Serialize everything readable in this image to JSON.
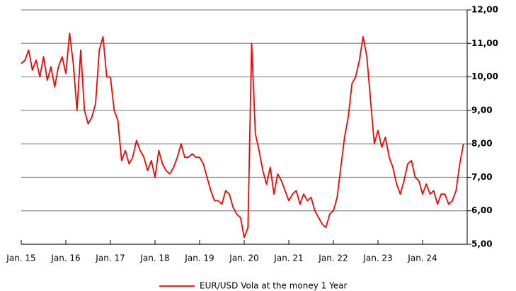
{
  "chart_data": {
    "type": "line",
    "categories": [
      "Jan. 15",
      null,
      null,
      null,
      null,
      null,
      null,
      null,
      null,
      null,
      null,
      null,
      "Jan. 16",
      null,
      null,
      null,
      null,
      null,
      null,
      null,
      null,
      null,
      null,
      null,
      "Jan. 17",
      null,
      null,
      null,
      null,
      null,
      null,
      null,
      null,
      null,
      null,
      null,
      "Jan. 18",
      null,
      null,
      null,
      null,
      null,
      null,
      null,
      null,
      null,
      null,
      null,
      "Jan. 19",
      null,
      null,
      null,
      null,
      null,
      null,
      null,
      null,
      null,
      null,
      null,
      "Jan. 20",
      null,
      null,
      null,
      null,
      null,
      null,
      null,
      null,
      null,
      null,
      null,
      "Jan. 21",
      null,
      null,
      null,
      null,
      null,
      null,
      null,
      null,
      null,
      null,
      null,
      "Jan. 22",
      null,
      null,
      null,
      null,
      null,
      null,
      null,
      null,
      null,
      null,
      null,
      "Jan. 23",
      null,
      null,
      null,
      null,
      null,
      null,
      null,
      null,
      null,
      null,
      null,
      "Jan. 24",
      null,
      null,
      null,
      null,
      null,
      null,
      null,
      null,
      null,
      null,
      null
    ],
    "series": [
      {
        "name": "EUR/USD Vola at the money 1 Year",
        "color": "#ff0000",
        "values": [
          10.4,
          10.5,
          10.8,
          10.2,
          10.5,
          10.0,
          10.6,
          9.9,
          10.3,
          9.7,
          10.3,
          10.6,
          10.1,
          11.3,
          10.4,
          9.0,
          10.8,
          9.0,
          8.6,
          8.8,
          9.2,
          10.8,
          11.2,
          10.0,
          10.0,
          9.0,
          8.7,
          7.5,
          7.8,
          7.4,
          7.6,
          8.1,
          7.8,
          7.6,
          7.2,
          7.5,
          7.0,
          7.8,
          7.4,
          7.2,
          7.1,
          7.3,
          7.6,
          8.0,
          7.6,
          7.6,
          7.7,
          7.6,
          7.6,
          7.4,
          7.0,
          6.6,
          6.3,
          6.3,
          6.2,
          6.6,
          6.5,
          6.1,
          5.9,
          5.8,
          5.2,
          5.5,
          11.0,
          8.3,
          7.8,
          7.2,
          6.8,
          7.3,
          6.5,
          7.1,
          6.9,
          6.6,
          6.3,
          6.5,
          6.6,
          6.2,
          6.5,
          6.3,
          6.4,
          6.0,
          5.8,
          5.6,
          5.5,
          5.9,
          6.0,
          6.4,
          7.3,
          8.2,
          8.8,
          9.8,
          10.0,
          10.5,
          11.2,
          10.6,
          9.3,
          8.0,
          8.4,
          7.9,
          8.2,
          7.6,
          7.3,
          6.8,
          6.5,
          6.9,
          7.4,
          7.5,
          7.0,
          6.9,
          6.5,
          6.8,
          6.5,
          6.6,
          6.2,
          6.5,
          6.5,
          6.2,
          6.3,
          6.6,
          7.4,
          8.0
        ]
      }
    ],
    "ylim": [
      5,
      12
    ],
    "yticks": [
      {
        "value": 5,
        "label": "5,00"
      },
      {
        "value": 6,
        "label": "6,00"
      },
      {
        "value": 7,
        "label": "7,00"
      },
      {
        "value": 8,
        "label": "8,00"
      },
      {
        "value": 9,
        "label": "9,00"
      },
      {
        "value": 10,
        "label": "10,00"
      },
      {
        "value": 11,
        "label": "11,00"
      },
      {
        "value": 12,
        "label": "12,00"
      }
    ],
    "grid": true,
    "y_axis_side": "right",
    "legend": "bottom"
  }
}
